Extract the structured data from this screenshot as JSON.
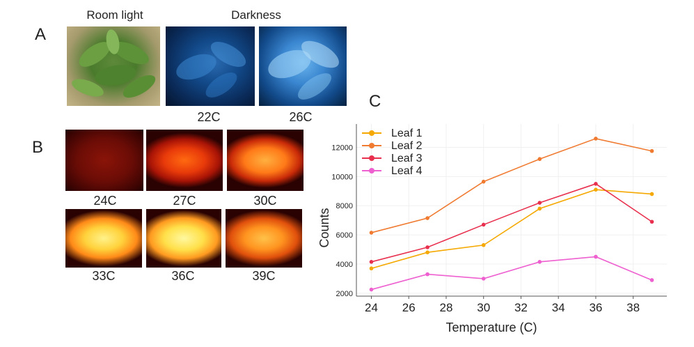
{
  "panel_a": {
    "letter": "A",
    "room_light_label": "Room light",
    "darkness_label": "Darkness",
    "captions": [
      "22C",
      "26C"
    ]
  },
  "panel_b": {
    "letter": "B",
    "captions": [
      "24C",
      "27C",
      "30C",
      "33C",
      "36C",
      "39C"
    ]
  },
  "panel_c": {
    "letter": "C"
  },
  "chart_data": {
    "type": "line",
    "title": "",
    "xlabel": "Temperature (C)",
    "ylabel": "Counts",
    "x": [
      24,
      27,
      30,
      33,
      36,
      39
    ],
    "xticks": [
      24,
      26,
      28,
      30,
      32,
      34,
      36,
      38
    ],
    "yticks": [
      2000,
      4000,
      6000,
      8000,
      10000,
      12000
    ],
    "xlim": [
      23.2,
      39.8
    ],
    "ylim": [
      1800,
      13600
    ],
    "grid": true,
    "legend_position": "top-left",
    "series": [
      {
        "name": "Leaf 1",
        "color": "#f5a800",
        "values": [
          3700,
          4800,
          5300,
          7800,
          9100,
          8800
        ]
      },
      {
        "name": "Leaf 2",
        "color": "#f07a30",
        "values": [
          6150,
          7150,
          9650,
          11200,
          12600,
          11750
        ]
      },
      {
        "name": "Leaf 3",
        "color": "#e8304e",
        "values": [
          4150,
          5150,
          6700,
          8200,
          9500,
          6900
        ]
      },
      {
        "name": "Leaf 4",
        "color": "#ee5fd0",
        "values": [
          2250,
          3300,
          3000,
          4150,
          4500,
          2900
        ]
      }
    ]
  }
}
